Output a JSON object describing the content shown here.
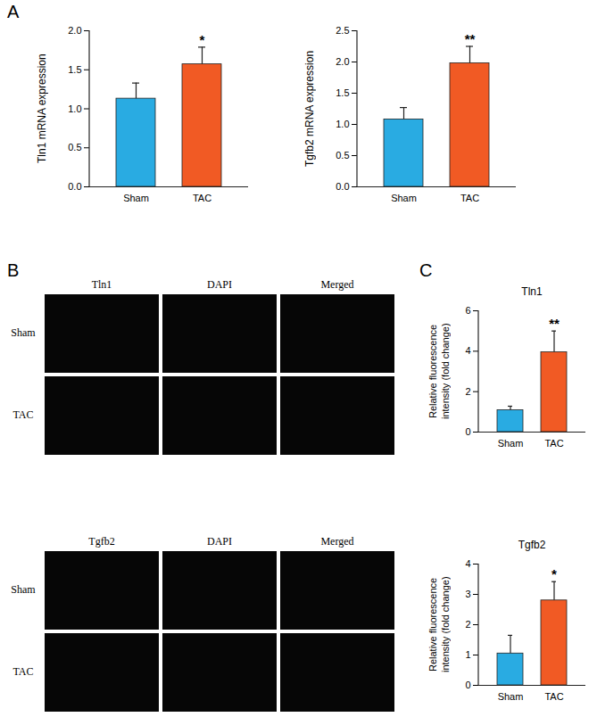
{
  "panel_labels": [
    "A",
    "B",
    "C"
  ],
  "chart_data": [
    {
      "type": "bar",
      "ylabel": "Tln1 mRNA expression",
      "categories": [
        "Sham",
        "TAC"
      ],
      "values": [
        1.13,
        1.57
      ],
      "errors": [
        0.2,
        0.22
      ],
      "colors": [
        "#29abe2",
        "#f15a24"
      ],
      "ylim": [
        0,
        2.0
      ],
      "yticks": [
        {
          "value": 0,
          "label": "0.0"
        },
        0.5,
        {
          "value": 1,
          "label": "1.0"
        },
        1.5,
        {
          "value": 2,
          "label": "2.0"
        }
      ],
      "annotations": [
        {
          "category": "TAC",
          "text": "*"
        }
      ]
    },
    {
      "type": "bar",
      "ylabel": "Tgfb2 mRNA expression",
      "categories": [
        "Sham",
        "TAC"
      ],
      "values": [
        1.08,
        1.98
      ],
      "errors": [
        0.19,
        0.27
      ],
      "colors": [
        "#29abe2",
        "#f15a24"
      ],
      "ylim": [
        0,
        2.5
      ],
      "yticks": [
        {
          "value": 0,
          "label": "0.0"
        },
        0.5,
        {
          "value": 1,
          "label": "1.0"
        },
        1.5,
        {
          "value": 2,
          "label": "2.0"
        },
        2.5
      ],
      "annotations": [
        {
          "category": "TAC",
          "text": "**"
        }
      ]
    },
    {
      "type": "bar",
      "title": "Tln1",
      "ylabel": "Relative fluorescence intensity (fold change)",
      "categories": [
        "Sham",
        "TAC"
      ],
      "values": [
        1.08,
        3.95
      ],
      "errors": [
        0.2,
        1.05
      ],
      "colors": [
        "#29abe2",
        "#f15a24"
      ],
      "ylim": [
        0,
        6
      ],
      "yticks": [
        0,
        2,
        4,
        6
      ],
      "annotations": [
        {
          "category": "TAC",
          "text": "**"
        }
      ]
    },
    {
      "type": "bar",
      "title": "Tgfb2",
      "ylabel": "Relative fluorescence intensity (fold change)",
      "categories": [
        "Sham",
        "TAC"
      ],
      "values": [
        1.05,
        2.8
      ],
      "errors": [
        0.6,
        0.62
      ],
      "colors": [
        "#29abe2",
        "#f15a24"
      ],
      "ylim": [
        0,
        4
      ],
      "yticks": [
        0,
        1,
        2,
        3,
        4
      ],
      "annotations": [
        {
          "category": "TAC",
          "text": "*"
        }
      ]
    }
  ],
  "images": [
    {
      "columns": [
        "Tln1",
        "DAPI",
        "Merged"
      ],
      "rows": [
        "Sham",
        "TAC"
      ]
    },
    {
      "columns": [
        "Tgfb2",
        "DAPI",
        "Merged"
      ],
      "rows": [
        "Sham",
        "TAC"
      ]
    }
  ]
}
